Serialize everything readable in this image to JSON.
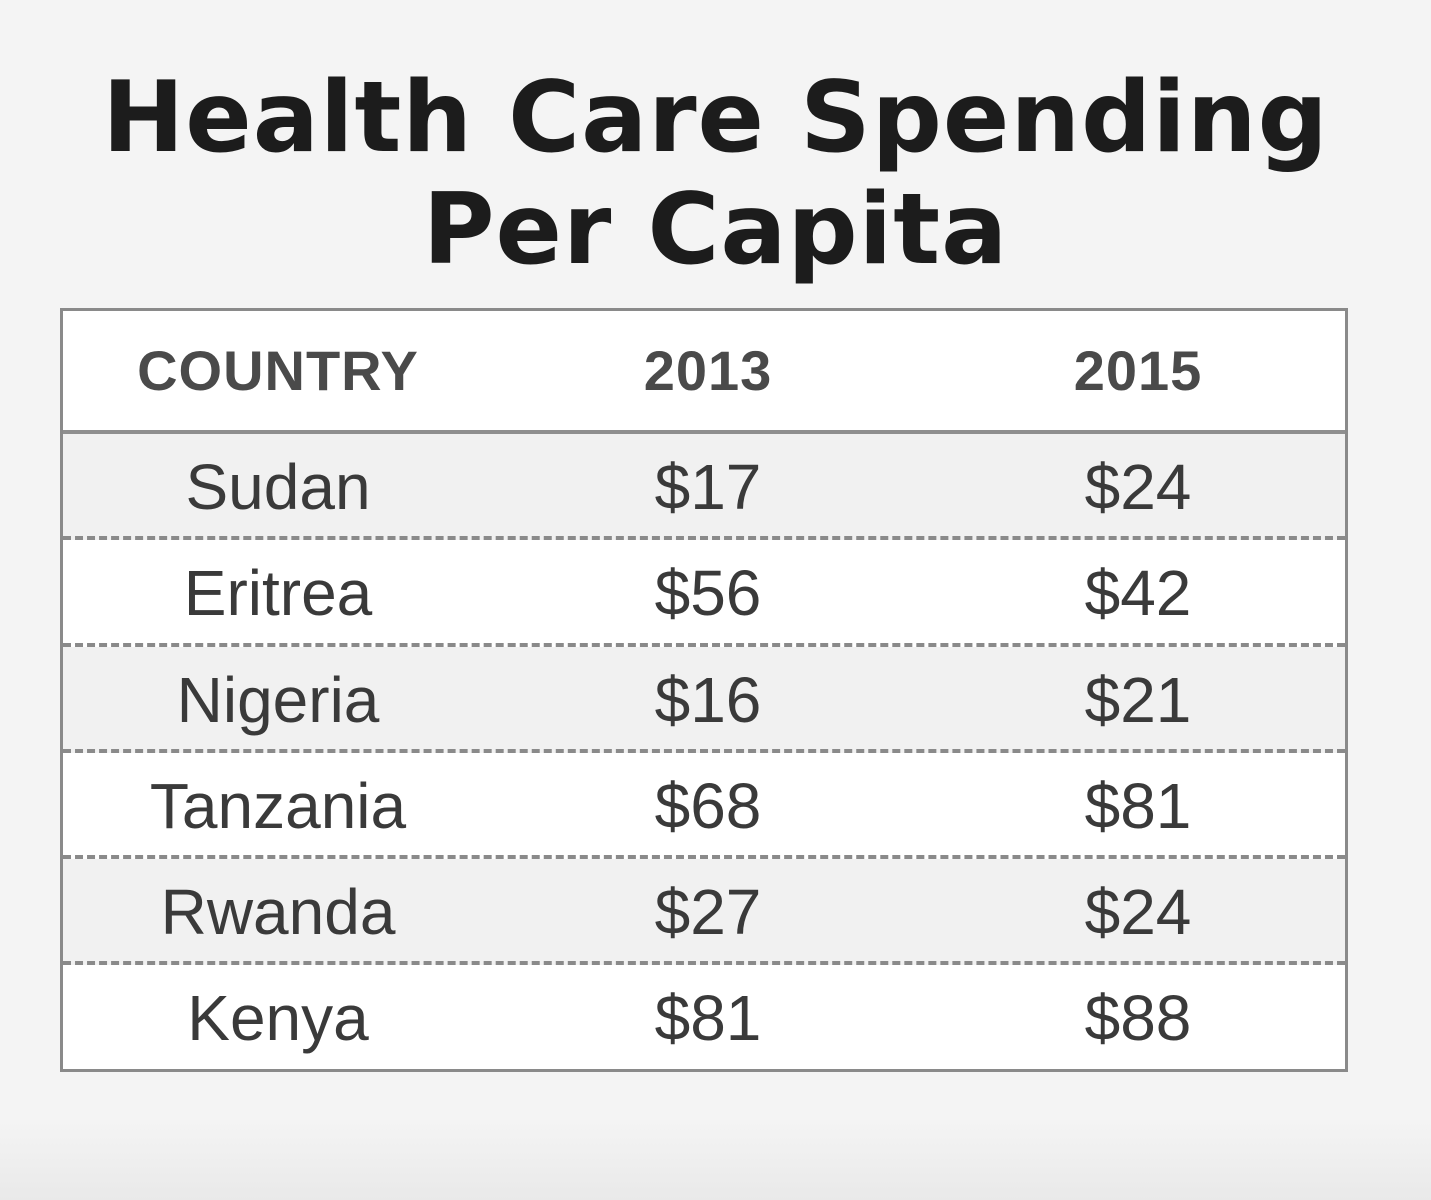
{
  "chart_data": {
    "type": "table",
    "title_lines": [
      "Health Care Spending",
      "Per Capita"
    ],
    "columns": [
      "COUNTRY",
      "2013",
      "2015"
    ],
    "rows": [
      {
        "country": "Sudan",
        "y2013": "$17",
        "y2015": "$24"
      },
      {
        "country": "Eritrea",
        "y2013": "$56",
        "y2015": "$42"
      },
      {
        "country": "Nigeria",
        "y2013": "$16",
        "y2015": "$21"
      },
      {
        "country": "Tanzania",
        "y2013": "$68",
        "y2015": "$81"
      },
      {
        "country": "Rwanda",
        "y2013": "$27",
        "y2015": "$24"
      },
      {
        "country": "Kenya",
        "y2013": "$81",
        "y2015": "$88"
      }
    ]
  }
}
